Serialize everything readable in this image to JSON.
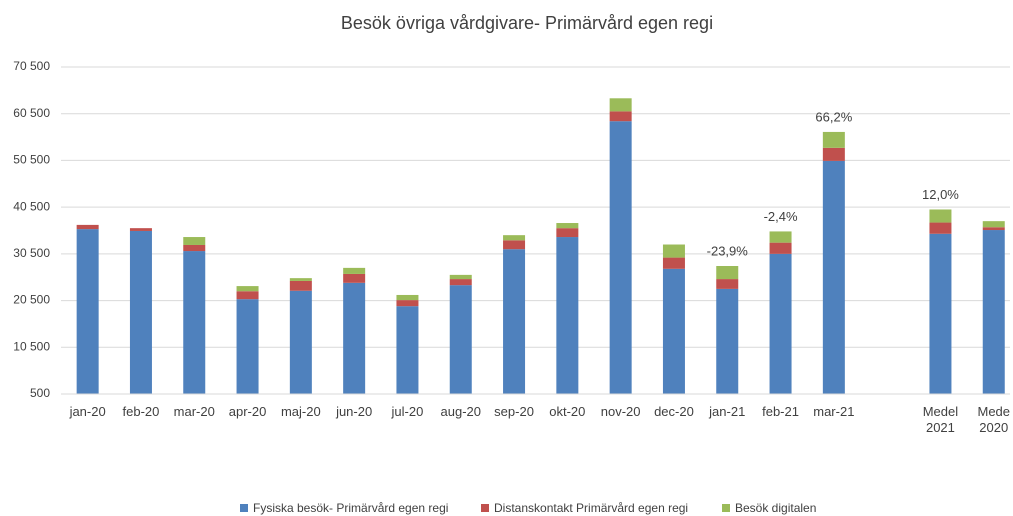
{
  "chart_data": {
    "type": "stacked_bar",
    "title": "Besök övriga vårdgivare- Primärvård egen regi",
    "categories": [
      "jan-20",
      "feb-20",
      "mar-20",
      "apr-20",
      "maj-20",
      "jun-20",
      "jul-20",
      "aug-20",
      "sep-20",
      "okt-20",
      "nov-20",
      "dec-20",
      "jan-21",
      "feb-21",
      "mar-21",
      null,
      "Medel 2021",
      "Mede 2020"
    ],
    "series": [
      {
        "name": "Fysiska besök- Primärvård egen regi",
        "color": "#4f81bd",
        "values": [
          35800,
          35400,
          31100,
          20800,
          22600,
          24300,
          19300,
          23800,
          31500,
          34100,
          58900,
          27300,
          23000,
          30500,
          50400,
          null,
          34800,
          35600
        ]
      },
      {
        "name": "Distanskontakt Primärvård egen regi",
        "color": "#c0504d",
        "values": [
          900,
          600,
          1300,
          1700,
          2100,
          1900,
          1300,
          1300,
          1900,
          1900,
          2100,
          2400,
          2100,
          2400,
          2800,
          null,
          2400,
          600
        ]
      },
      {
        "name": "Besök digitalen",
        "color": "#9bbb59",
        "values": [
          0,
          0,
          1700,
          1100,
          600,
          1300,
          1100,
          900,
          1100,
          1100,
          2800,
          2800,
          2800,
          2400,
          3400,
          null,
          2800,
          1300
        ]
      }
    ],
    "annotations": [
      {
        "text": "-23,9%",
        "category": "jan-21"
      },
      {
        "text": "-2,4%",
        "category": "feb-21"
      },
      {
        "text": "66,2%",
        "category": "mar-21"
      },
      {
        "text": "12,0%",
        "category": "Medel 2021"
      }
    ],
    "ylim": [
      500,
      70500
    ],
    "yticks": [
      500,
      {
        "value": 10500,
        "label": "10 500"
      },
      {
        "value": 20500,
        "label": "20 500"
      },
      {
        "value": 30500,
        "label": "30 500"
      },
      {
        "value": 40500,
        "label": "40 500"
      },
      {
        "value": 50500,
        "label": "50 500"
      },
      {
        "value": 60500,
        "label": "60 500"
      },
      {
        "value": 70500,
        "label": "70 500"
      }
    ],
    "grid": true,
    "legend": "bottom"
  }
}
